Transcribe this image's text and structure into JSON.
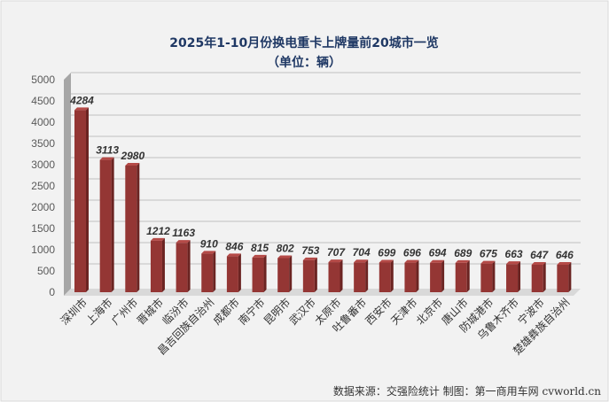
{
  "chart_data": {
    "type": "bar",
    "title": "2025年1-10月份换电重卡上牌量前20城市一览",
    "subtitle": "（单位：辆）",
    "categories": [
      "深圳市",
      "上海市",
      "广州市",
      "晋城市",
      "临汾市",
      "昌吉回族自治州",
      "成都市",
      "南宁市",
      "昆明市",
      "武汉市",
      "太原市",
      "吐鲁番市",
      "西安市",
      "天津市",
      "北京市",
      "唐山市",
      "防城港市",
      "乌鲁木齐市",
      "宁波市",
      "楚雄彝族自治州"
    ],
    "values": [
      4284,
      3113,
      2980,
      1212,
      1163,
      910,
      846,
      815,
      802,
      753,
      707,
      704,
      699,
      696,
      694,
      689,
      675,
      663,
      647,
      646
    ],
    "ylim": [
      0,
      5000
    ],
    "yticks": [
      0,
      500,
      1000,
      1500,
      2000,
      2500,
      3000,
      3500,
      4000,
      4500,
      5000
    ],
    "grid": true,
    "legend": "none",
    "bar_color": "#943634",
    "source_note": "数据来源：交强险统计   制图：第一商用车网 cvworld.cn"
  }
}
